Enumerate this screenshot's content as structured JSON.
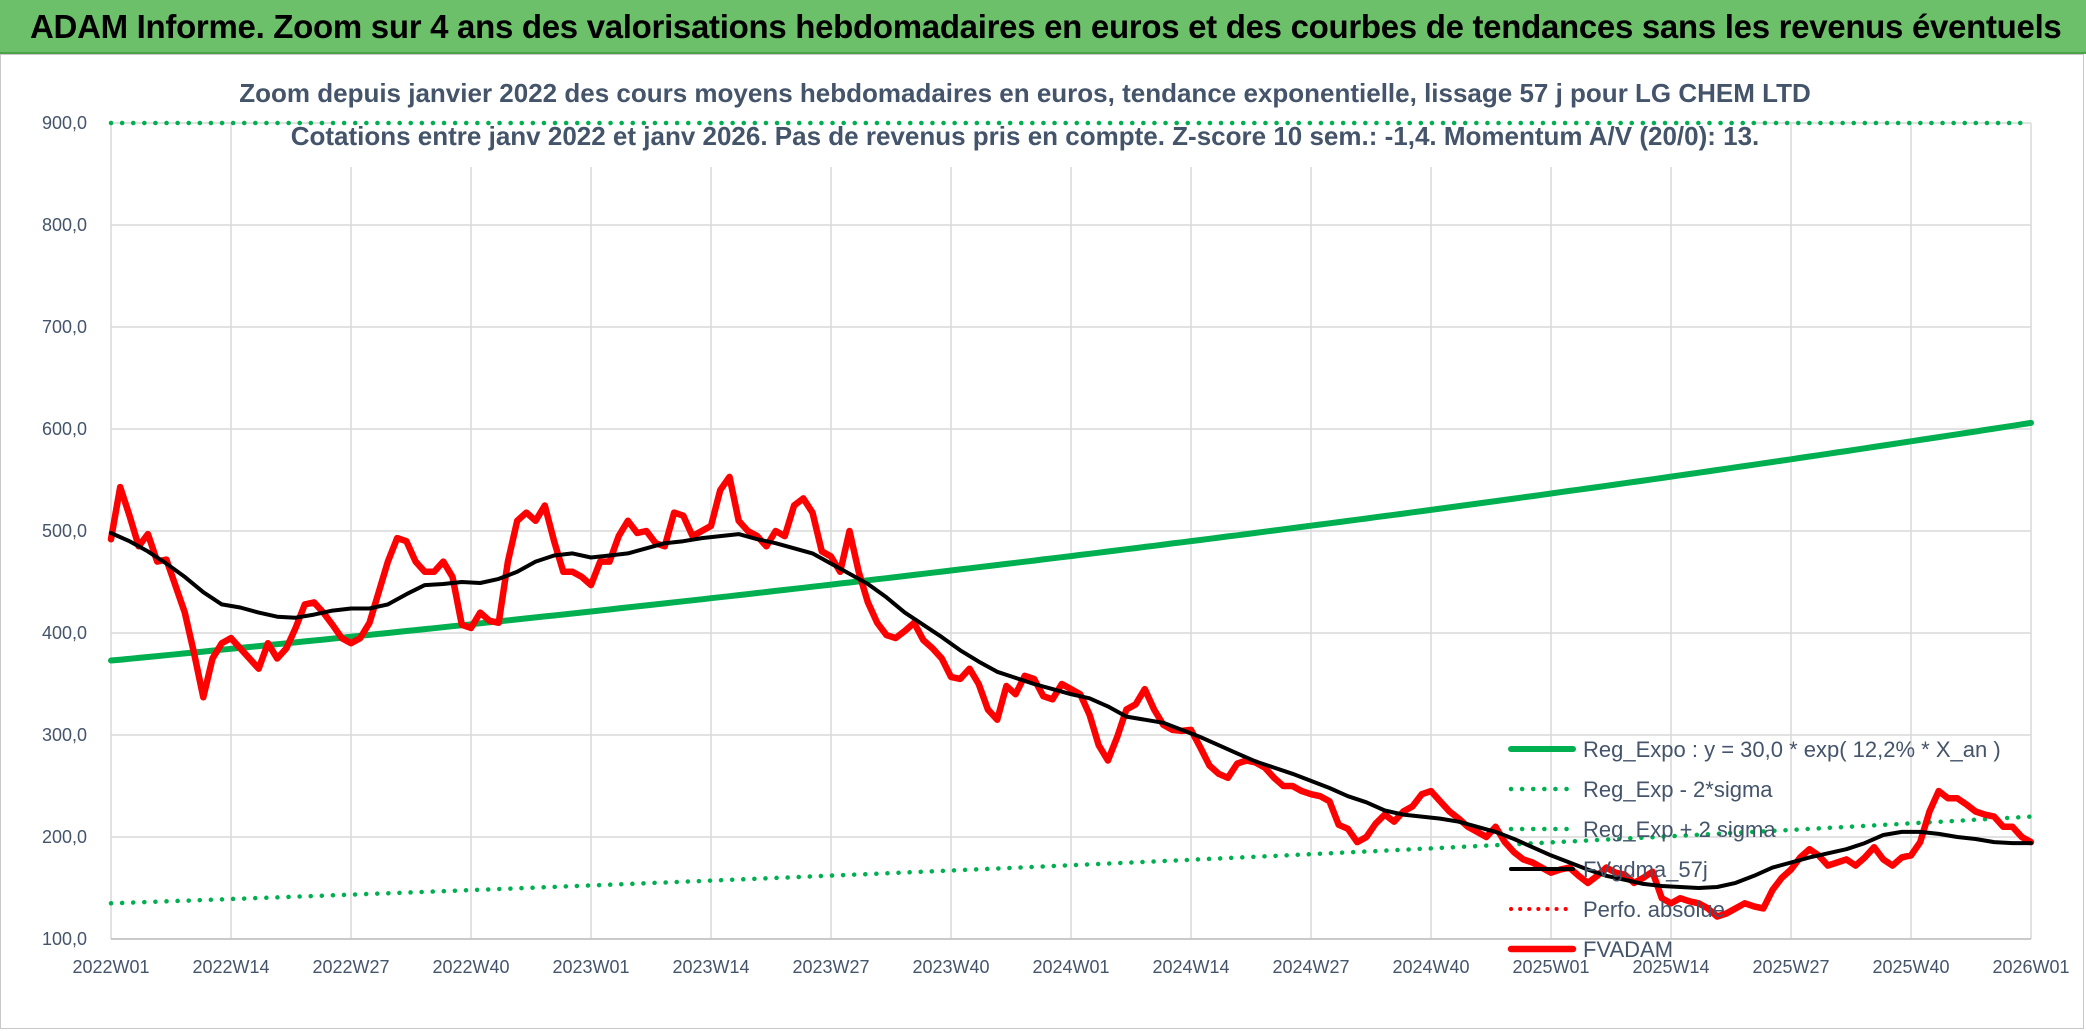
{
  "header": {
    "title": "ADAM Informe. Zoom sur 4 ans des valorisations hebdomadaires en euros et des courbes de tendances sans les revenus éventuels"
  },
  "chart_data": {
    "type": "line",
    "title_line1": "Zoom depuis janvier 2022 des cours moyens hebdomadaires en euros, tendance exponentielle, lissage 57 j pour LG CHEM LTD",
    "title_line2": "Cotations entre janv 2022 et janv 2026. Pas de revenus pris en compte. Z-score 10 sem.: -1,4. Momentum A/V (20/0): 13.",
    "ylim": [
      100,
      900
    ],
    "yticks": [
      "100,0",
      "200,0",
      "300,0",
      "400,0",
      "500,0",
      "600,0",
      "700,0",
      "800,0",
      "900,0"
    ],
    "x_tick_labels": [
      "2022W01",
      "2022W14",
      "2022W27",
      "2022W40",
      "2023W01",
      "2023W14",
      "2023W27",
      "2023W40",
      "2024W01",
      "2024W14",
      "2024W27",
      "2024W40",
      "2025W01",
      "2025W14",
      "2025W27",
      "2025W40",
      "2026W01"
    ],
    "x_range_weeks": [
      0,
      208
    ],
    "grid": true,
    "legend_position": "bottom-right",
    "colors": {
      "reg_expo": "#00b050",
      "sigma_bands": "#00b050",
      "fvgdma": "#000000",
      "perfo": "#ff0000",
      "fvadam": "#ff0000",
      "grid": "#d9d9d9"
    },
    "series": [
      {
        "name": "Reg_Expo : y = 30,0 * exp( 12,2% *  X_an )",
        "style": "solid-thick",
        "x": [
          0,
          208
        ],
        "y": [
          373,
          606
        ],
        "exponential": true
      },
      {
        "name": "Reg_Exp - 2*sigma",
        "style": "dotted",
        "x": [
          0,
          208
        ],
        "y": [
          135,
          220
        ],
        "exponential": true
      },
      {
        "name": "Reg_Exp + 2 sigma",
        "style": "dotted",
        "x": [
          0,
          208
        ],
        "y": [
          900,
          900
        ]
      },
      {
        "name": "FVgdma_57j",
        "style": "solid",
        "x": [
          0,
          2,
          4,
          6,
          8,
          10,
          12,
          14,
          16,
          18,
          20,
          22,
          24,
          26,
          28,
          30,
          32,
          34,
          36,
          38,
          40,
          42,
          44,
          46,
          48,
          50,
          52,
          54,
          56,
          58,
          60,
          62,
          64,
          66,
          68,
          70,
          72,
          74,
          76,
          78,
          80,
          82,
          84,
          86,
          88,
          90,
          92,
          94,
          96,
          98,
          100,
          102,
          104,
          106,
          108,
          110,
          112,
          114,
          116,
          118,
          120,
          122,
          124,
          126,
          128,
          130,
          132,
          134,
          136,
          138,
          140,
          142,
          144,
          146,
          148,
          150,
          152,
          154,
          156,
          158,
          160,
          162,
          164,
          166,
          168,
          170,
          172,
          174,
          176,
          178,
          180,
          182,
          184,
          186,
          188,
          190,
          192,
          194,
          196,
          198,
          200,
          202,
          204,
          206,
          208
        ],
        "y": [
          498,
          490,
          480,
          468,
          455,
          440,
          428,
          425,
          420,
          416,
          415,
          418,
          422,
          424,
          424,
          428,
          438,
          447,
          448,
          450,
          449,
          453,
          460,
          470,
          476,
          478,
          474,
          476,
          478,
          483,
          488,
          490,
          493,
          495,
          497,
          492,
          488,
          483,
          478,
          468,
          458,
          448,
          435,
          420,
          408,
          396,
          383,
          372,
          362,
          356,
          350,
          345,
          340,
          336,
          328,
          318,
          315,
          312,
          305,
          298,
          290,
          282,
          274,
          268,
          262,
          255,
          248,
          240,
          234,
          226,
          222,
          220,
          218,
          215,
          210,
          205,
          198,
          190,
          182,
          175,
          168,
          162,
          158,
          154,
          152,
          151,
          150,
          151,
          155,
          162,
          170,
          175,
          180,
          184,
          188,
          194,
          202,
          205,
          205,
          203,
          200,
          198,
          195,
          194,
          194
        ]
      },
      {
        "name": "Perfo. absolue",
        "style": "dotted",
        "x": [],
        "y": []
      },
      {
        "name": "FVADAM",
        "style": "solid-thick",
        "x": [
          0,
          1,
          2,
          3,
          4,
          5,
          6,
          7,
          8,
          9,
          10,
          11,
          12,
          13,
          14,
          15,
          16,
          17,
          18,
          19,
          20,
          21,
          22,
          23,
          24,
          25,
          26,
          27,
          28,
          29,
          30,
          31,
          32,
          33,
          34,
          35,
          36,
          37,
          38,
          39,
          40,
          41,
          42,
          43,
          44,
          45,
          46,
          47,
          48,
          49,
          50,
          51,
          52,
          53,
          54,
          55,
          56,
          57,
          58,
          59,
          60,
          61,
          62,
          63,
          64,
          65,
          66,
          67,
          68,
          69,
          70,
          71,
          72,
          73,
          74,
          75,
          76,
          77,
          78,
          79,
          80,
          81,
          82,
          83,
          84,
          85,
          86,
          87,
          88,
          89,
          90,
          91,
          92,
          93,
          94,
          95,
          96,
          97,
          98,
          99,
          100,
          101,
          102,
          103,
          104,
          105,
          106,
          107,
          108,
          109,
          110,
          111,
          112,
          113,
          114,
          115,
          116,
          117,
          118,
          119,
          120,
          121,
          122,
          123,
          124,
          125,
          126,
          127,
          128,
          129,
          130,
          131,
          132,
          133,
          134,
          135,
          136,
          137,
          138,
          139,
          140,
          141,
          142,
          143,
          144,
          145,
          146,
          147,
          148,
          149,
          150,
          151,
          152,
          153,
          154,
          155,
          156,
          157,
          158,
          159,
          160,
          161,
          162,
          163,
          164,
          165,
          166,
          167,
          168,
          169,
          170,
          171,
          172,
          173,
          174,
          175,
          176,
          177,
          178,
          179,
          180,
          181,
          182,
          183,
          184,
          185,
          186,
          187,
          188,
          189,
          190,
          191,
          192,
          193,
          194,
          195,
          196,
          197,
          198,
          199,
          200,
          201,
          202,
          203,
          204,
          205,
          206,
          207,
          208
        ],
        "y": [
          492,
          543,
          515,
          485,
          497,
          470,
          472,
          446,
          420,
          380,
          337,
          375,
          390,
          395,
          385,
          375,
          365,
          390,
          375,
          385,
          405,
          428,
          430,
          420,
          408,
          395,
          390,
          395,
          410,
          440,
          470,
          493,
          490,
          470,
          460,
          460,
          470,
          455,
          408,
          405,
          420,
          412,
          410,
          470,
          510,
          518,
          510,
          525,
          490,
          460,
          460,
          455,
          447,
          470,
          470,
          495,
          510,
          498,
          500,
          488,
          485,
          518,
          515,
          495,
          500,
          505,
          540,
          553,
          510,
          500,
          495,
          485,
          500,
          495,
          525,
          532,
          518,
          480,
          475,
          460,
          500,
          460,
          430,
          410,
          398,
          395,
          402,
          410,
          393,
          385,
          375,
          357,
          355,
          365,
          350,
          325,
          315,
          348,
          340,
          358,
          355,
          338,
          335,
          350,
          345,
          340,
          320,
          290,
          275,
          298,
          325,
          330,
          345,
          325,
          310,
          305,
          304,
          305,
          288,
          270,
          262,
          258,
          272,
          275,
          273,
          268,
          258,
          250,
          250,
          245,
          242,
          240,
          235,
          212,
          208,
          195,
          200,
          213,
          222,
          215,
          225,
          230,
          242,
          245,
          235,
          225,
          218,
          210,
          205,
          200,
          210,
          195,
          185,
          178,
          175,
          170,
          165,
          168,
          170,
          162,
          155,
          162,
          170,
          165,
          163,
          155,
          160,
          166,
          140,
          135,
          140,
          137,
          135,
          130,
          122,
          125,
          130,
          135,
          132,
          130,
          148,
          160,
          168,
          180,
          188,
          182,
          172,
          175,
          178,
          172,
          180,
          190,
          178,
          172,
          180,
          182,
          195,
          225,
          245,
          238,
          238,
          232,
          225,
          222,
          220,
          210,
          210,
          200,
          195
        ]
      }
    ]
  }
}
